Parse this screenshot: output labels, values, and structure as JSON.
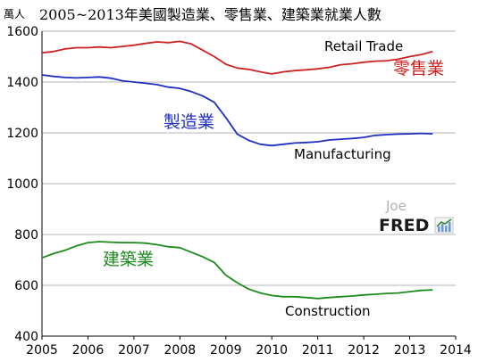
{
  "chart_data": {
    "type": "line",
    "title": "2005~2013年美國製造業、零售業、建築業就業人數",
    "unit_label": "萬人",
    "xlim": [
      2005,
      2014
    ],
    "ylim": [
      400,
      1600
    ],
    "x_ticks": [
      "2005",
      "2006",
      "2007",
      "2008",
      "2009",
      "2010",
      "2011",
      "2012",
      "2013",
      "2014"
    ],
    "y_ticks": [
      "400",
      "600",
      "800",
      "1000",
      "1200",
      "1400",
      "1600"
    ],
    "grid": "horizontal",
    "series": [
      {
        "name": "Retail Trade",
        "name_zh": "零售業",
        "color": "#cc2222",
        "x": [
          2005.0,
          2005.25,
          2005.5,
          2005.75,
          2006.0,
          2006.25,
          2006.5,
          2006.75,
          2007.0,
          2007.25,
          2007.5,
          2007.75,
          2008.0,
          2008.25,
          2008.5,
          2008.75,
          2009.0,
          2009.25,
          2009.5,
          2009.75,
          2010.0,
          2010.25,
          2010.5,
          2010.75,
          2011.0,
          2011.25,
          2011.5,
          2011.75,
          2012.0,
          2012.25,
          2012.5,
          2012.75,
          2013.0,
          2013.25,
          2013.5
        ],
        "y": [
          1515,
          1520,
          1530,
          1535,
          1535,
          1538,
          1535,
          1540,
          1545,
          1552,
          1558,
          1555,
          1560,
          1550,
          1525,
          1500,
          1470,
          1455,
          1450,
          1440,
          1432,
          1440,
          1445,
          1448,
          1452,
          1458,
          1468,
          1472,
          1478,
          1482,
          1484,
          1490,
          1500,
          1508,
          1520
        ]
      },
      {
        "name": "Manufacturing",
        "name_zh": "製造業",
        "color": "#1f2fbf",
        "x": [
          2005.0,
          2005.25,
          2005.5,
          2005.75,
          2006.0,
          2006.25,
          2006.5,
          2006.75,
          2007.0,
          2007.25,
          2007.5,
          2007.75,
          2008.0,
          2008.25,
          2008.5,
          2008.75,
          2009.0,
          2009.25,
          2009.5,
          2009.75,
          2010.0,
          2010.25,
          2010.5,
          2010.75,
          2011.0,
          2011.25,
          2011.5,
          2011.75,
          2012.0,
          2012.25,
          2012.5,
          2012.75,
          2013.0,
          2013.25,
          2013.5
        ],
        "y": [
          1428,
          1422,
          1418,
          1416,
          1418,
          1420,
          1415,
          1405,
          1400,
          1395,
          1390,
          1380,
          1375,
          1362,
          1345,
          1320,
          1260,
          1195,
          1170,
          1155,
          1150,
          1155,
          1160,
          1162,
          1165,
          1172,
          1175,
          1178,
          1182,
          1190,
          1193,
          1195,
          1196,
          1198,
          1196
        ]
      },
      {
        "name": "Construction",
        "name_zh": "建築業",
        "color": "#1e8a1e",
        "x": [
          2005.0,
          2005.25,
          2005.5,
          2005.75,
          2006.0,
          2006.25,
          2006.5,
          2006.75,
          2007.0,
          2007.25,
          2007.5,
          2007.75,
          2008.0,
          2008.25,
          2008.5,
          2008.75,
          2009.0,
          2009.25,
          2009.5,
          2009.75,
          2010.0,
          2010.25,
          2010.5,
          2010.75,
          2011.0,
          2011.25,
          2011.5,
          2011.75,
          2012.0,
          2012.25,
          2012.5,
          2012.75,
          2013.0,
          2013.25,
          2013.5
        ],
        "y": [
          708,
          725,
          738,
          755,
          768,
          772,
          770,
          768,
          768,
          766,
          760,
          752,
          748,
          730,
          712,
          690,
          640,
          610,
          585,
          570,
          560,
          555,
          555,
          552,
          548,
          552,
          555,
          558,
          562,
          565,
          568,
          570,
          575,
          580,
          582
        ]
      }
    ]
  },
  "logo": {
    "top": "Joe",
    "bottom": "FRED"
  }
}
